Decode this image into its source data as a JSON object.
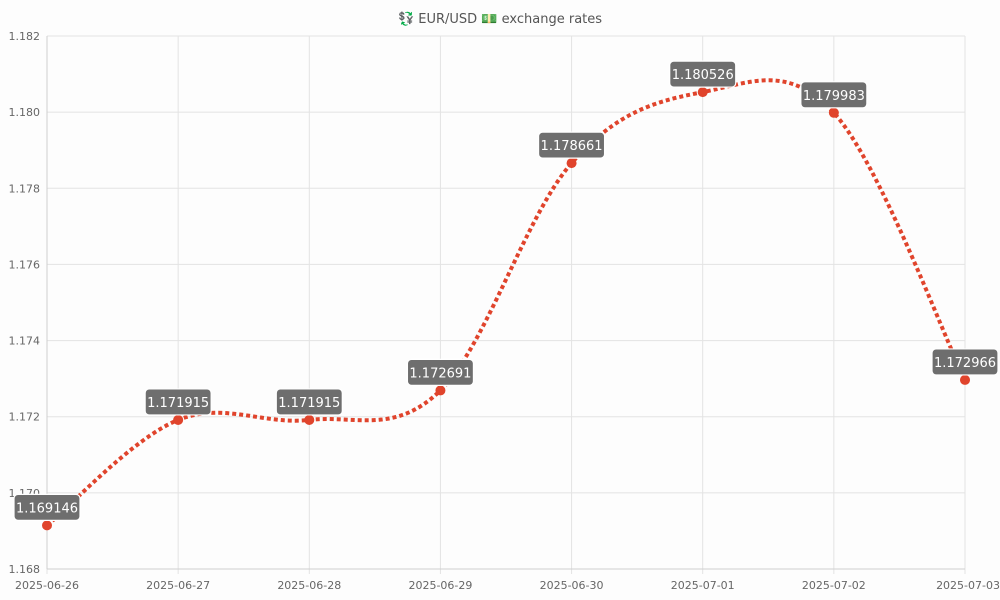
{
  "chart_data": {
    "type": "line",
    "title": "💱 EUR/USD 💵 exchange rates",
    "title_icons": [
      "currency-exchange-icon",
      "dollar-banknote-icon"
    ],
    "categories": [
      "2025-06-26",
      "2025-06-27",
      "2025-06-28",
      "2025-06-29",
      "2025-06-30",
      "2025-07-01",
      "2025-07-02",
      "2025-07-03"
    ],
    "series": [
      {
        "values": [
          1.169146,
          1.171915,
          1.171915,
          1.172691,
          1.178661,
          1.180526,
          1.179983,
          1.172966
        ],
        "color": "#e0442c",
        "line_style": "dotted",
        "smooth": true
      }
    ],
    "data_labels": [
      "1.169146",
      "1.171915",
      "1.171915",
      "1.172691",
      "1.178661",
      "1.180526",
      "1.179983",
      "1.172966"
    ],
    "yticks": [
      "1.168",
      "1.170",
      "1.172",
      "1.174",
      "1.176",
      "1.178",
      "1.180",
      "1.182"
    ],
    "ylim": [
      1.168,
      1.182
    ],
    "grid": true,
    "legend": "none",
    "xlabel": "",
    "ylabel": ""
  }
}
